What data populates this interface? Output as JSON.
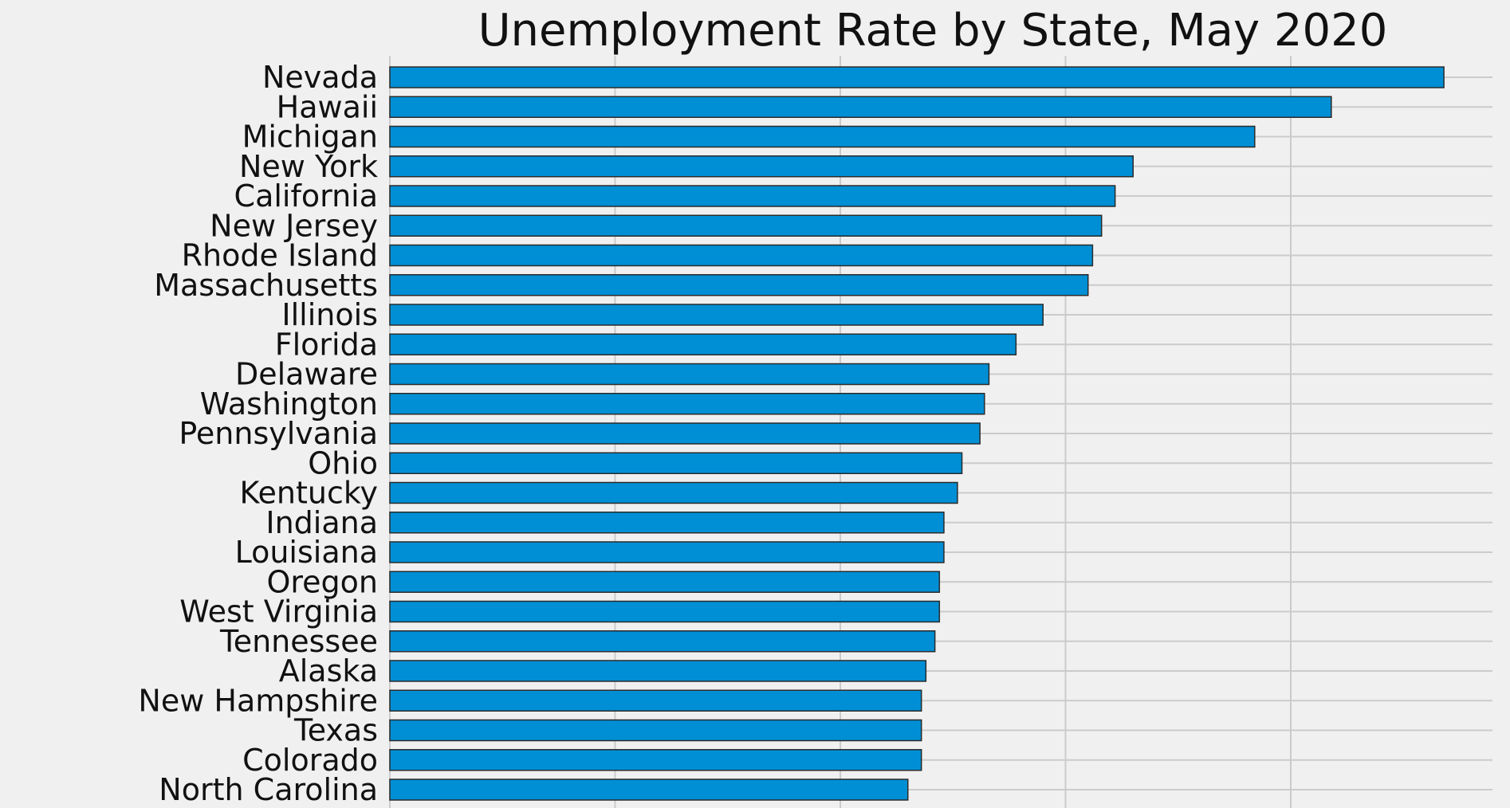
{
  "chart_data": {
    "type": "bar",
    "orientation": "horizontal",
    "title": "Unemployment Rate by State, May 2020",
    "xlabel": "",
    "ylabel": "",
    "xlim": [
      0,
      25
    ],
    "x_gridlines": [
      0,
      5,
      10,
      15,
      20,
      25
    ],
    "grid": true,
    "legend": "none",
    "categories": [
      "Nevada",
      "Hawaii",
      "Michigan",
      "New York",
      "California",
      "New Jersey",
      "Rhode Island",
      "Massachusetts",
      "Illinois",
      "Florida",
      "Delaware",
      "Washington",
      "Pennsylvania",
      "Ohio",
      "Kentucky",
      "Indiana",
      "Louisiana",
      "Oregon",
      "West Virginia",
      "Tennessee",
      "Alaska",
      "New Hampshire",
      "Texas",
      "Colorado",
      "North Carolina"
    ],
    "values": [
      23.4,
      20.9,
      19.2,
      16.5,
      16.1,
      15.8,
      15.6,
      15.5,
      14.5,
      13.9,
      13.3,
      13.2,
      13.1,
      12.7,
      12.6,
      12.3,
      12.3,
      12.2,
      12.2,
      12.1,
      11.9,
      11.8,
      11.8,
      11.8,
      11.5
    ],
    "colors": {
      "bar": "#008fd5",
      "bar_edge": "#2b2b2b",
      "grid": "#cbcbcb",
      "background": "#f0f0f0"
    }
  }
}
